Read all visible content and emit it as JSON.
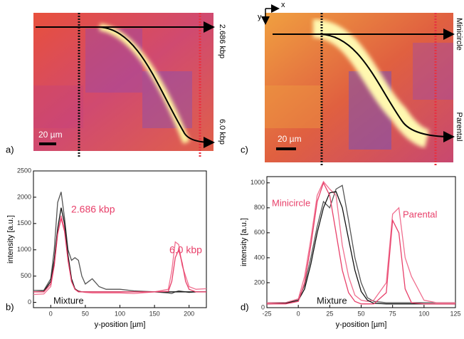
{
  "images": [
    {
      "label": "a)",
      "scale": "20 µm",
      "annotations": [
        "2.686 kbp",
        "6.0 kbp"
      ]
    },
    {
      "label": "c)",
      "scale": "20 µm",
      "axes": [
        "x",
        "y"
      ],
      "annotations": [
        "Minicircle",
        "Parental"
      ]
    }
  ],
  "chart_data": [
    {
      "type": "line",
      "label": "b)",
      "xlabel": "y-position [µm]",
      "ylabel": "intensity [a.u.]",
      "xlim": [
        -25,
        225
      ],
      "xticks": [
        0,
        50,
        100,
        150,
        200
      ],
      "ylim": [
        -100,
        2500
      ],
      "yticks": [
        0,
        500,
        1000,
        1500,
        2000,
        2500
      ],
      "annotations": [
        {
          "text": "2.686 kbp",
          "color": "#e8406a"
        },
        {
          "text": "6.0 kbp",
          "color": "#e8406a"
        },
        {
          "text": "Mixture",
          "color": "#111111"
        }
      ],
      "x": [
        -25,
        -10,
        0,
        5,
        10,
        15,
        20,
        25,
        30,
        35,
        40,
        45,
        50,
        60,
        70,
        80,
        100,
        120,
        150,
        170,
        175,
        180,
        185,
        190,
        195,
        200,
        210,
        225
      ],
      "series": [
        {
          "color": "#555555",
          "values": [
            230,
            230,
            450,
            1000,
            1900,
            2100,
            1600,
            1000,
            800,
            850,
            800,
            500,
            350,
            450,
            300,
            250,
            250,
            220,
            200,
            180,
            170,
            200,
            220,
            210,
            200,
            190,
            200,
            200
          ]
        },
        {
          "color": "#f07090",
          "values": [
            150,
            160,
            300,
            700,
            1300,
            1650,
            1400,
            800,
            400,
            250,
            220,
            200,
            190,
            180,
            180,
            180,
            180,
            170,
            200,
            250,
            600,
            1150,
            1100,
            700,
            500,
            300,
            250,
            260
          ]
        },
        {
          "color": "#111111",
          "values": [
            200,
            210,
            400,
            800,
            1400,
            1800,
            1500,
            900,
            450,
            260,
            210,
            200,
            200,
            200,
            200,
            200,
            200,
            200,
            200,
            200,
            200,
            200,
            200,
            200,
            200,
            200,
            200,
            200
          ]
        },
        {
          "color": "#e8406a",
          "values": [
            200,
            200,
            350,
            700,
            1300,
            1600,
            1350,
            800,
            400,
            250,
            200,
            200,
            200,
            200,
            200,
            200,
            200,
            200,
            200,
            210,
            400,
            850,
            1000,
            750,
            400,
            250,
            200,
            200
          ]
        }
      ]
    },
    {
      "type": "line",
      "label": "d)",
      "xlabel": "y-position [µm]",
      "ylabel": "intensity [a.u.]",
      "xlim": [
        -25,
        125
      ],
      "xticks": [
        -25,
        0,
        25,
        50,
        75,
        100,
        125
      ],
      "ylim": [
        0,
        1050
      ],
      "yticks": [
        0,
        200,
        400,
        600,
        800,
        1000
      ],
      "annotations": [
        {
          "text": "Minicircle",
          "color": "#e8406a"
        },
        {
          "text": "Parental",
          "color": "#e8406a"
        },
        {
          "text": "Mixture",
          "color": "#111111"
        }
      ],
      "x": [
        -25,
        -10,
        0,
        5,
        10,
        15,
        20,
        25,
        30,
        35,
        40,
        45,
        50,
        55,
        60,
        70,
        75,
        80,
        85,
        90,
        100,
        110,
        125
      ],
      "series": [
        {
          "color": "#555555",
          "values": [
            40,
            40,
            70,
            180,
            400,
            650,
            850,
            800,
            950,
            980,
            700,
            400,
            200,
            80,
            50,
            40,
            40,
            40,
            40,
            40,
            40,
            40,
            40
          ]
        },
        {
          "color": "#f07090",
          "values": [
            40,
            40,
            70,
            250,
            550,
            900,
            1010,
            950,
            900,
            500,
            250,
            100,
            60,
            50,
            60,
            200,
            750,
            800,
            400,
            250,
            60,
            40,
            40
          ]
        },
        {
          "color": "#111111",
          "values": [
            30,
            35,
            60,
            150,
            350,
            600,
            800,
            920,
            930,
            800,
            550,
            300,
            130,
            60,
            35,
            30,
            30,
            30,
            30,
            30,
            30,
            30,
            30
          ]
        },
        {
          "color": "#e8406a",
          "values": [
            30,
            30,
            50,
            200,
            500,
            850,
            1000,
            900,
            600,
            300,
            120,
            50,
            30,
            30,
            30,
            120,
            700,
            600,
            150,
            40,
            30,
            30,
            30
          ]
        }
      ]
    }
  ]
}
